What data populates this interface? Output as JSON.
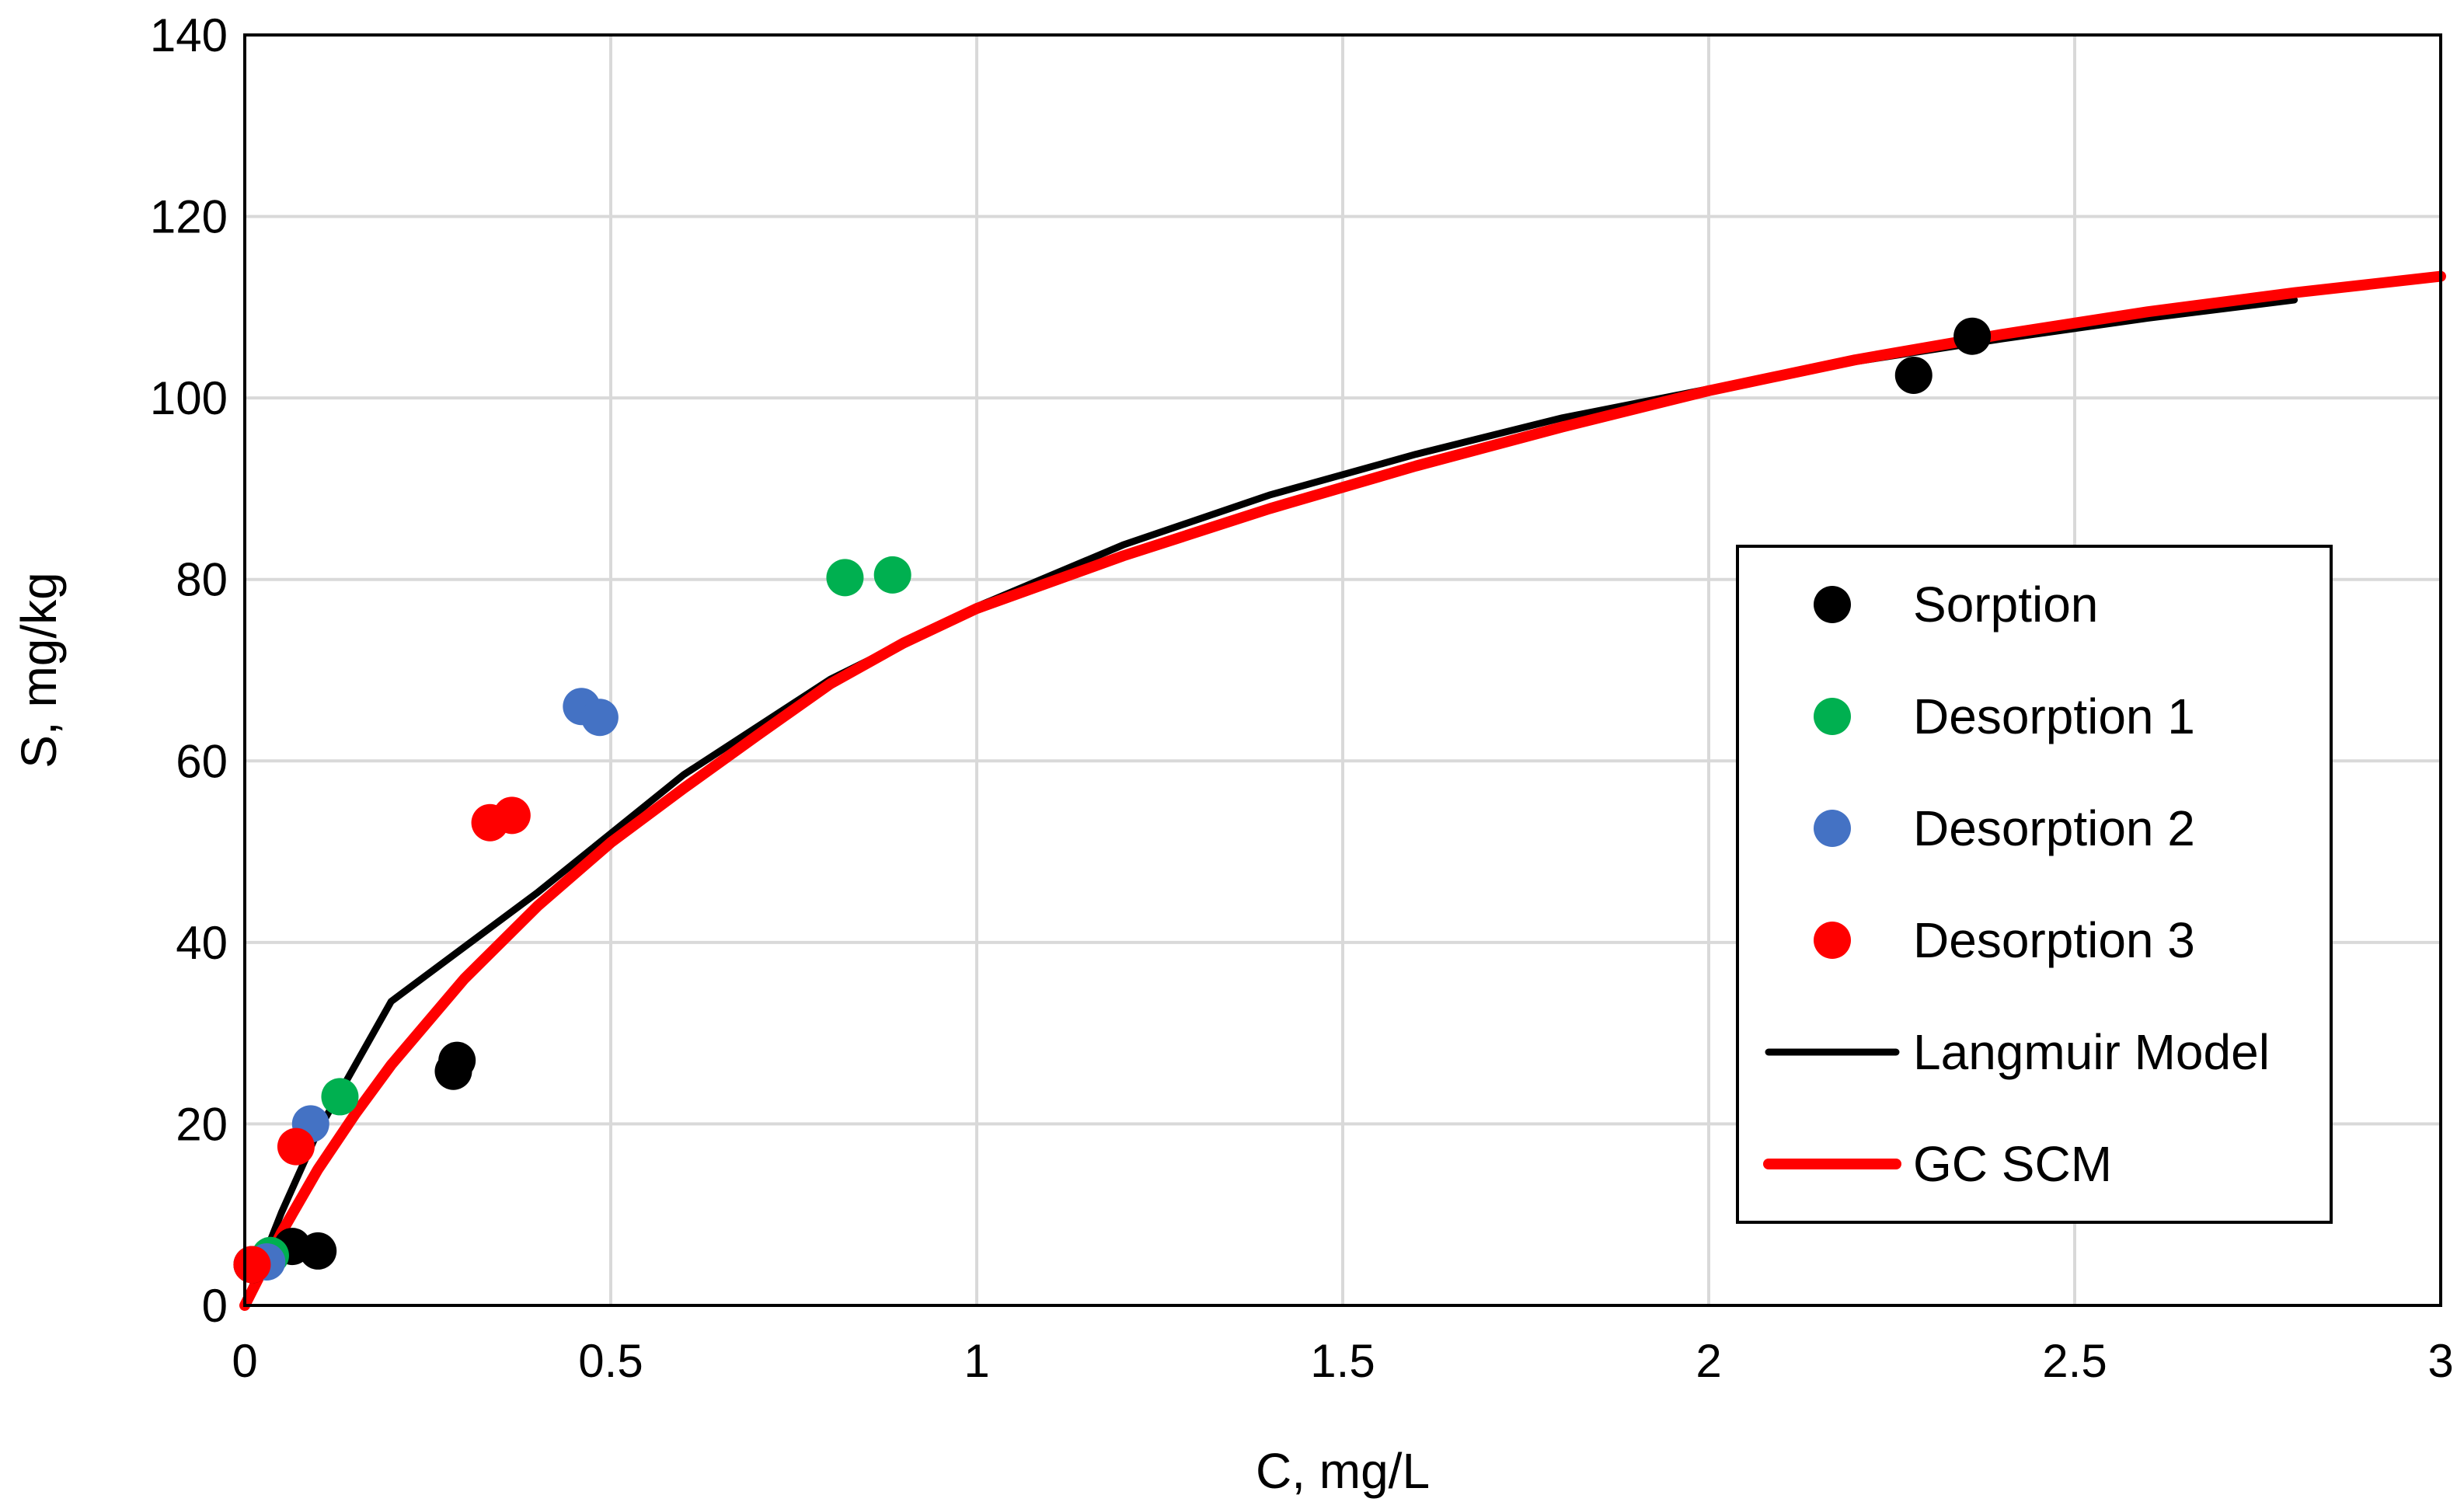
{
  "chart_data": {
    "type": "scatter",
    "title": "",
    "xlabel": "C, mg/L",
    "ylabel": "S, mg/kg",
    "xlim": [
      0,
      3
    ],
    "ylim": [
      0,
      140
    ],
    "xticks": [
      0,
      0.5,
      1,
      1.5,
      2,
      2.5,
      3
    ],
    "xtick_labels": [
      "0",
      "0.5",
      "1",
      "1.5",
      "2",
      "2.5",
      "3"
    ],
    "yticks": [
      0,
      20,
      40,
      60,
      80,
      100,
      120,
      140
    ],
    "ytick_labels": [
      "0",
      "20",
      "40",
      "60",
      "80",
      "100",
      "120",
      "140"
    ],
    "grid": true,
    "legend_position": "right",
    "series": [
      {
        "name": "Sorption",
        "kind": "scatter",
        "color": "#000000",
        "points": [
          [
            0.01,
            4.5
          ],
          [
            0.065,
            6.5
          ],
          [
            0.1,
            6.0
          ],
          [
            0.285,
            25.8
          ],
          [
            0.29,
            27.0
          ],
          [
            2.28,
            102.5
          ],
          [
            2.36,
            106.8
          ]
        ]
      },
      {
        "name": "Desorption 1",
        "kind": "scatter",
        "color": "#00b050",
        "points": [
          [
            0.035,
            5.5
          ],
          [
            0.13,
            23.0
          ],
          [
            0.82,
            80.2
          ],
          [
            0.885,
            80.5
          ]
        ]
      },
      {
        "name": "Desorption 2",
        "kind": "scatter",
        "color": "#4472c4",
        "points": [
          [
            0.03,
            4.8
          ],
          [
            0.09,
            20.0
          ],
          [
            0.46,
            66.0
          ],
          [
            0.485,
            64.8
          ]
        ]
      },
      {
        "name": "Desorption 3",
        "kind": "scatter",
        "color": "#ff0000",
        "points": [
          [
            0.01,
            4.5
          ],
          [
            0.07,
            17.5
          ],
          [
            0.335,
            53.2
          ],
          [
            0.365,
            54.0
          ]
        ]
      },
      {
        "name": "Langmuir Model",
        "kind": "line",
        "color": "#000000",
        "points": [
          [
            0,
            0
          ],
          [
            0.05,
            10.2
          ],
          [
            0.1,
            19.2
          ],
          [
            0.2,
            33.5
          ],
          [
            0.4,
            45.5
          ],
          [
            0.6,
            58.5
          ],
          [
            0.8,
            69.0
          ],
          [
            1.0,
            77.0
          ],
          [
            1.2,
            83.8
          ],
          [
            1.4,
            89.3
          ],
          [
            1.6,
            93.8
          ],
          [
            1.8,
            97.8
          ],
          [
            2.0,
            101.0
          ],
          [
            2.2,
            104.0
          ],
          [
            2.4,
            106.5
          ],
          [
            2.6,
            108.8
          ],
          [
            2.8,
            110.8
          ]
        ]
      },
      {
        "name": "GC SCM",
        "kind": "line",
        "color": "#ff0000",
        "points": [
          [
            0,
            0
          ],
          [
            0.05,
            8.0
          ],
          [
            0.1,
            15.0
          ],
          [
            0.15,
            21.0
          ],
          [
            0.2,
            26.5
          ],
          [
            0.3,
            36.0
          ],
          [
            0.4,
            44.0
          ],
          [
            0.5,
            51.0
          ],
          [
            0.6,
            57.0
          ],
          [
            0.7,
            62.8
          ],
          [
            0.8,
            68.5
          ],
          [
            0.9,
            73.0
          ],
          [
            1.0,
            76.8
          ],
          [
            1.2,
            82.6
          ],
          [
            1.4,
            87.8
          ],
          [
            1.6,
            92.5
          ],
          [
            1.8,
            96.8
          ],
          [
            2.0,
            100.8
          ],
          [
            2.2,
            104.2
          ],
          [
            2.4,
            107.0
          ],
          [
            2.6,
            109.5
          ],
          [
            2.8,
            111.6
          ],
          [
            3.0,
            113.4
          ]
        ]
      }
    ]
  }
}
